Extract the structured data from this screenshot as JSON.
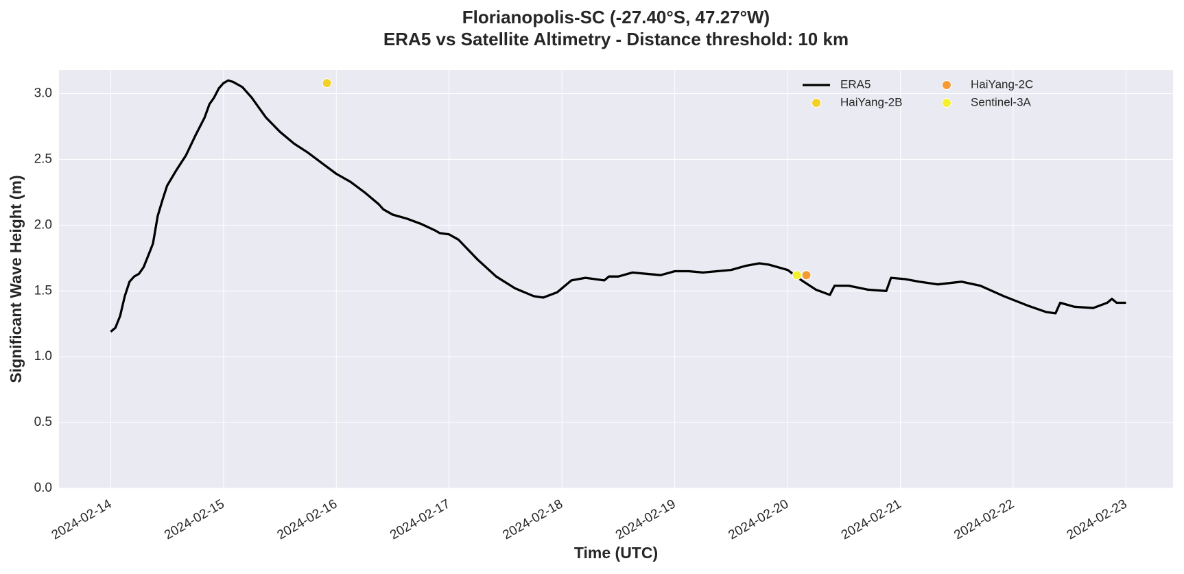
{
  "chart_data": {
    "type": "line",
    "title": "Florianopolis-SC (-27.40°S, 47.27°W)",
    "subtitle": "ERA5 vs Satellite Altimetry - Distance threshold: 10 km",
    "x_label": "Time (UTC)",
    "y_label": "Significant Wave Height (m)",
    "xlim": [
      "2024-02-13 13:00",
      "2024-02-23 10:00"
    ],
    "xticks": [
      "2024-02-14",
      "2024-02-15",
      "2024-02-16",
      "2024-02-17",
      "2024-02-18",
      "2024-02-19",
      "2024-02-20",
      "2024-02-21",
      "2024-02-22",
      "2024-02-23"
    ],
    "ylim": [
      0,
      3.18
    ],
    "yticks": [
      {
        "value": 0,
        "label": "0.0"
      },
      0.5,
      {
        "value": 1,
        "label": "1.0"
      },
      1.5,
      {
        "value": 2,
        "label": "2.0"
      },
      2.5,
      {
        "value": 3,
        "label": "3.0"
      }
    ],
    "grid": true,
    "legend": "upper right",
    "series": [
      {
        "name": "ERA5",
        "type": "line",
        "color": "#000000",
        "x": [
          "2024-02-14 00:00",
          "2024-02-14 01:00",
          "2024-02-14 02:00",
          "2024-02-14 03:00",
          "2024-02-14 04:00",
          "2024-02-14 05:00",
          "2024-02-14 06:00",
          "2024-02-14 07:00",
          "2024-02-14 08:00",
          "2024-02-14 09:00",
          "2024-02-14 10:00",
          "2024-02-14 11:00",
          "2024-02-14 12:00",
          "2024-02-14 14:00",
          "2024-02-14 16:00",
          "2024-02-14 18:00",
          "2024-02-14 20:00",
          "2024-02-14 21:00",
          "2024-02-14 22:00",
          "2024-02-14 23:00",
          "2024-02-15 00:00",
          "2024-02-15 01:00",
          "2024-02-15 02:00",
          "2024-02-15 04:00",
          "2024-02-15 06:00",
          "2024-02-15 09:00",
          "2024-02-15 12:00",
          "2024-02-15 15:00",
          "2024-02-15 18:00",
          "2024-02-15 21:00",
          "2024-02-16 00:00",
          "2024-02-16 03:00",
          "2024-02-16 06:00",
          "2024-02-16 09:00",
          "2024-02-16 10:00",
          "2024-02-16 12:00",
          "2024-02-16 15:00",
          "2024-02-16 18:00",
          "2024-02-16 21:00",
          "2024-02-16 22:00",
          "2024-02-17 00:00",
          "2024-02-17 02:00",
          "2024-02-17 06:00",
          "2024-02-17 10:00",
          "2024-02-17 14:00",
          "2024-02-17 18:00",
          "2024-02-17 20:00",
          "2024-02-17 23:00",
          "2024-02-18 02:00",
          "2024-02-18 05:00",
          "2024-02-18 09:00",
          "2024-02-18 10:00",
          "2024-02-18 12:00",
          "2024-02-18 15:00",
          "2024-02-18 18:00",
          "2024-02-18 21:00",
          "2024-02-19 00:00",
          "2024-02-19 03:00",
          "2024-02-19 06:00",
          "2024-02-19 09:00",
          "2024-02-19 12:00",
          "2024-02-19 15:00",
          "2024-02-19 18:00",
          "2024-02-19 20:00",
          "2024-02-20 00:00",
          "2024-02-20 03:00",
          "2024-02-20 06:00",
          "2024-02-20 09:00",
          "2024-02-20 10:00",
          "2024-02-20 13:00",
          "2024-02-20 17:00",
          "2024-02-20 21:00",
          "2024-02-20 22:00",
          "2024-02-21 01:00",
          "2024-02-21 04:00",
          "2024-02-21 08:00",
          "2024-02-21 13:00",
          "2024-02-21 17:00",
          "2024-02-21 22:00",
          "2024-02-22 03:00",
          "2024-02-22 07:00",
          "2024-02-22 09:00",
          "2024-02-22 10:00",
          "2024-02-22 13:00",
          "2024-02-22 17:00",
          "2024-02-22 20:00",
          "2024-02-22 21:00",
          "2024-02-22 22:00",
          "2024-02-23 00:00"
        ],
        "values": [
          1.19,
          1.22,
          1.31,
          1.46,
          1.57,
          1.61,
          1.63,
          1.68,
          1.77,
          1.86,
          2.07,
          2.19,
          2.3,
          2.42,
          2.53,
          2.68,
          2.82,
          2.92,
          2.97,
          3.04,
          3.08,
          3.1,
          3.09,
          3.05,
          2.97,
          2.82,
          2.71,
          2.62,
          2.55,
          2.47,
          2.39,
          2.33,
          2.25,
          2.16,
          2.12,
          2.08,
          2.05,
          2.01,
          1.96,
          1.94,
          1.93,
          1.89,
          1.74,
          1.61,
          1.52,
          1.46,
          1.45,
          1.49,
          1.58,
          1.6,
          1.58,
          1.61,
          1.61,
          1.64,
          1.63,
          1.62,
          1.65,
          1.65,
          1.64,
          1.65,
          1.66,
          1.69,
          1.71,
          1.7,
          1.66,
          1.58,
          1.51,
          1.47,
          1.54,
          1.54,
          1.51,
          1.5,
          1.6,
          1.59,
          1.57,
          1.55,
          1.57,
          1.54,
          1.46,
          1.39,
          1.34,
          1.33,
          1.41,
          1.38,
          1.37,
          1.41,
          1.44,
          1.41,
          1.41
        ]
      },
      {
        "name": "HaiYang-2B",
        "type": "scatter",
        "color": "#f2d024",
        "x": [
          "2024-02-15 22:00"
        ],
        "values": [
          3.08
        ]
      },
      {
        "name": "HaiYang-2C",
        "type": "scatter",
        "color": "#f59a32",
        "x": [
          "2024-02-20 04:00"
        ],
        "values": [
          1.62
        ]
      },
      {
        "name": "Sentinel-3A",
        "type": "scatter",
        "color": "#f4f030",
        "x": [
          "2024-02-20 02:00"
        ],
        "values": [
          1.62
        ]
      }
    ]
  }
}
